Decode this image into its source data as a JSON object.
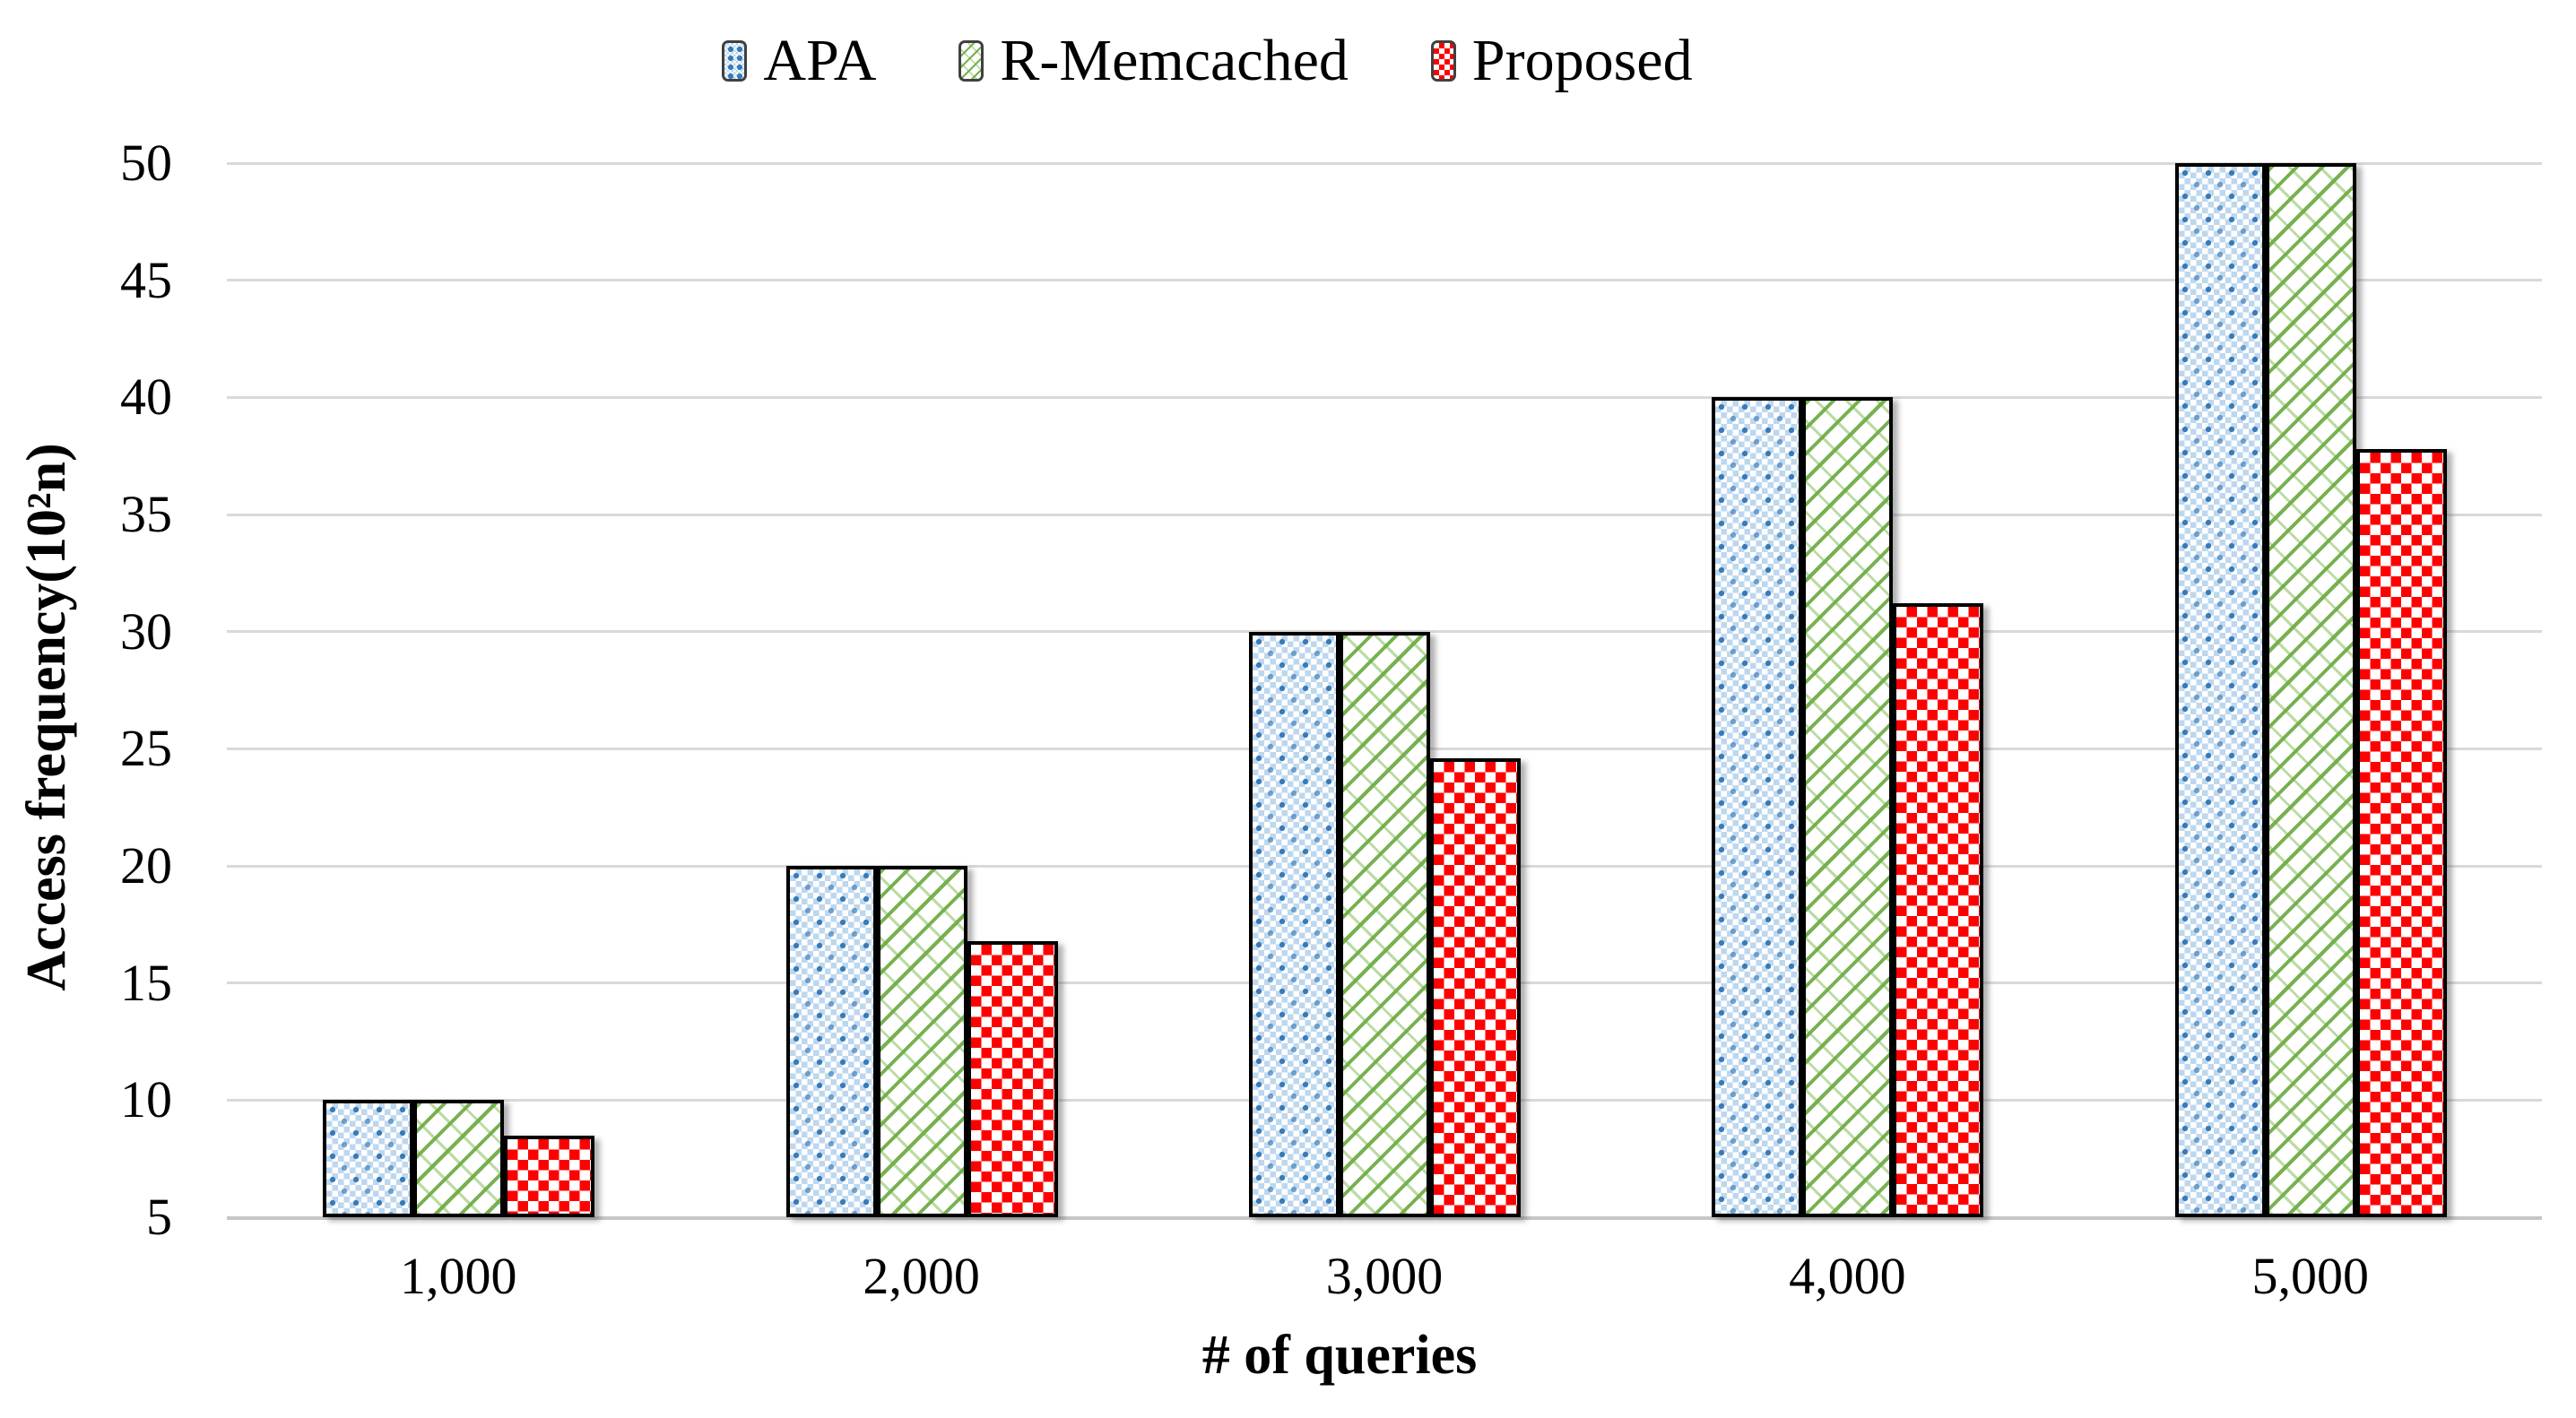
{
  "chart_data": {
    "type": "bar",
    "title": "",
    "categories": [
      "1,000",
      "2,000",
      "3,000",
      "4,000",
      "5,000"
    ],
    "series": [
      {
        "name": "APA",
        "pattern": "blue-dotted",
        "color": "#2e74b5",
        "values": [
          10,
          20,
          30,
          40,
          50
        ]
      },
      {
        "name": "R-Memcached",
        "pattern": "green-diagonal-hatch",
        "color": "#70ad47",
        "values": [
          10,
          20,
          30,
          40,
          50
        ]
      },
      {
        "name": "Proposed",
        "pattern": "red-checkerboard",
        "color": "#ff0000",
        "values": [
          8.5,
          16.8,
          24.6,
          31.2,
          37.8
        ]
      }
    ],
    "xlabel": "# of queries",
    "ylabel": "Access frequency(10²n)",
    "y_ticks": [
      5,
      10,
      15,
      20,
      25,
      30,
      35,
      40,
      45,
      50
    ],
    "ylim": [
      5,
      50
    ],
    "grid": "horizontal",
    "gridline_color": "#d9d9d9",
    "baseline_color": "#c6c6c6",
    "bar_border_color": "#000000",
    "legend_position": "top-center",
    "background_color": "#ffffff"
  }
}
